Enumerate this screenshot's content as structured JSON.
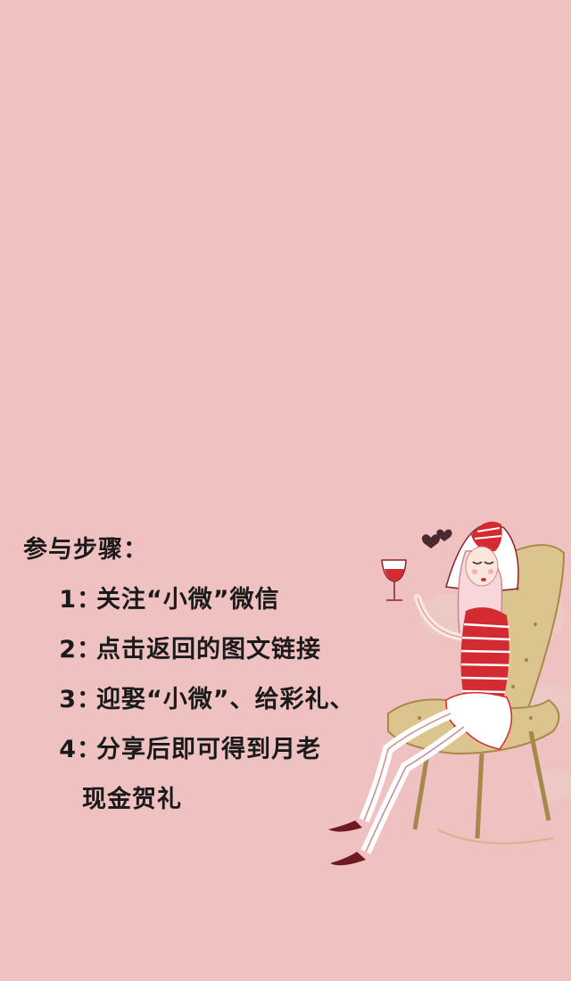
{
  "steps_title": "参与步骤：",
  "steps": [
    {
      "num": "1",
      "sep": "：",
      "text": "关注“小微”微信"
    },
    {
      "num": "2",
      "sep": "：",
      "text": "点击返回的图文链接"
    },
    {
      "num": "3",
      "sep": "：",
      "text": "迎娶“小微”、给彩礼、"
    },
    {
      "num": "4",
      "sep": "：",
      "text": "分享后即可得到月老"
    }
  ],
  "step4_continuation": "现金贺礼",
  "colors": {
    "background": "#f0c1c1",
    "text": "#1a1a1a",
    "accent_red": "#d42a32",
    "chair": "#d9c08a"
  },
  "illustration": {
    "icon": "woman-with-wine-glass-illustration"
  }
}
